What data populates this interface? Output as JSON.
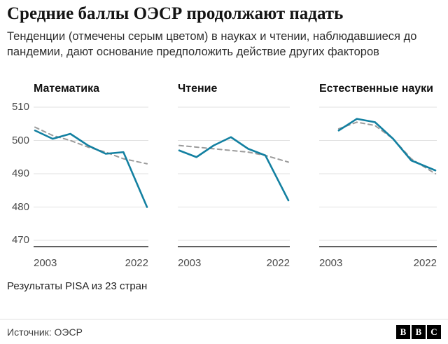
{
  "header": {
    "title": "Средние баллы ОЭСР продолжают падать",
    "subtitle": "Тенденции (отмечены серым цветом) в науках и чтении, наблюдавшиеся до пандемии, дают основание предположить действие других факторов"
  },
  "chart_data": {
    "type": "line",
    "x_domain": [
      2003,
      2022
    ],
    "x_start_label": "2003",
    "x_end_label": "2022",
    "ylim": [
      470,
      510
    ],
    "yticks": [
      470,
      480,
      490,
      500,
      510
    ],
    "grid": "horizontal",
    "legend_position": "none",
    "colors": {
      "actual": "#1380A1",
      "trend": "#9b9b9b",
      "grid": "#e2e2e2",
      "baseline": "#2b2b2b"
    },
    "panels": [
      {
        "title": "Математика",
        "series": [
          {
            "name": "trend",
            "style": "dashed",
            "x": [
              2003,
              2006,
              2009,
              2012,
              2015,
              2018,
              2022
            ],
            "y": [
              504,
              501.5,
              500,
              498,
              496.5,
              494.5,
              493
            ]
          },
          {
            "name": "actual",
            "style": "solid",
            "x": [
              2003,
              2006,
              2009,
              2012,
              2015,
              2018,
              2022
            ],
            "y": [
              503,
              500.5,
              502,
              498.5,
              496,
              496.5,
              480
            ]
          }
        ]
      },
      {
        "title": "Чтение",
        "series": [
          {
            "name": "trend",
            "style": "dashed",
            "x": [
              2003,
              2006,
              2009,
              2012,
              2015,
              2018,
              2022
            ],
            "y": [
              498.5,
              498,
              497.5,
              497,
              496.5,
              495.5,
              493.5
            ]
          },
          {
            "name": "actual",
            "style": "solid",
            "x": [
              2003,
              2006,
              2009,
              2012,
              2015,
              2018,
              2022
            ],
            "y": [
              497,
              495,
              498.5,
              501,
              497.5,
              495.5,
              482
            ]
          }
        ]
      },
      {
        "title": "Естественные науки",
        "series": [
          {
            "name": "trend",
            "style": "dashed",
            "x": [
              2006,
              2009,
              2012,
              2015,
              2018,
              2022
            ],
            "y": [
              503.5,
              505.5,
              504.5,
              500.5,
              494.5,
              490
            ]
          },
          {
            "name": "actual",
            "style": "solid",
            "x": [
              2006,
              2009,
              2012,
              2015,
              2018,
              2022
            ],
            "y": [
              503,
              506.5,
              505.5,
              500.5,
              494,
              491
            ]
          }
        ]
      }
    ]
  },
  "footer": {
    "note": "Результаты PISA из 23 стран",
    "source": "Источник: ОЭСР",
    "logo_letters": [
      "B",
      "B",
      "C"
    ]
  }
}
